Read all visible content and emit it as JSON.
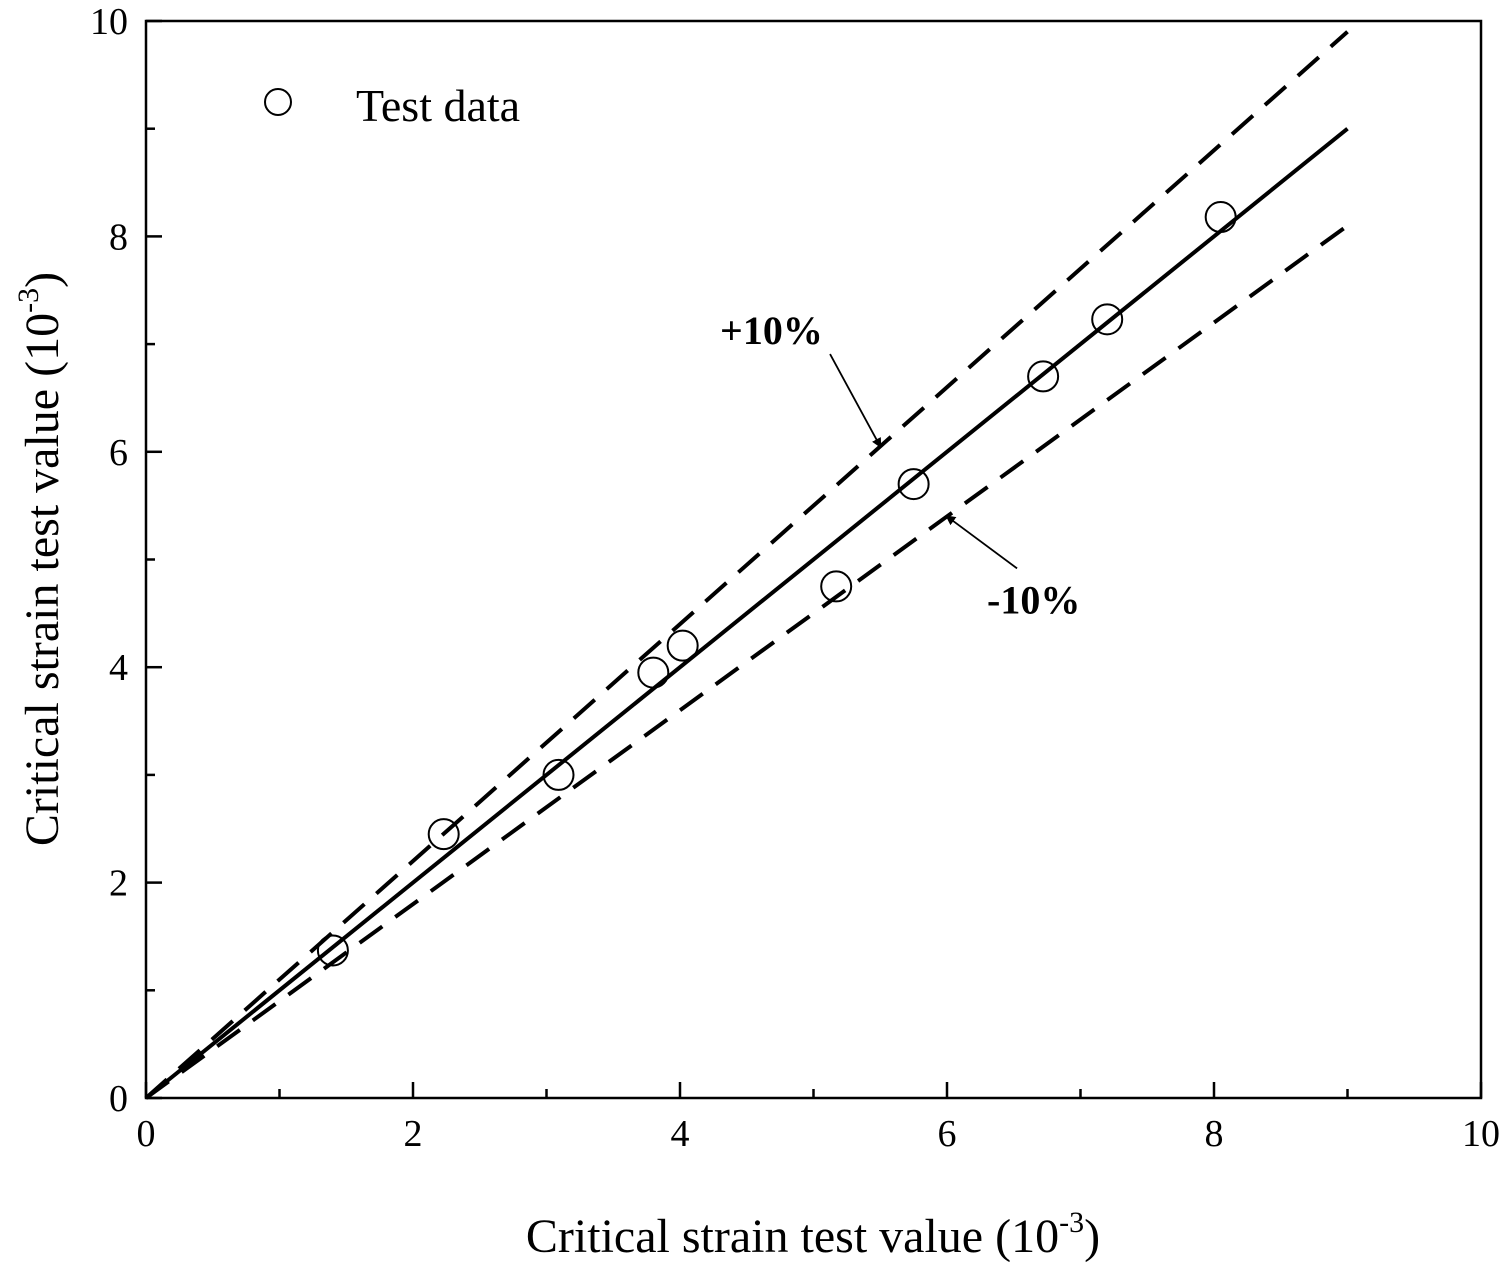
{
  "chart_data": {
    "type": "scatter",
    "title": "",
    "xlabel_main": "Critical strain test value (10",
    "xlabel_exp": "-3",
    "xlabel_close": ")",
    "ylabel_main": "Critical strain test value (10",
    "ylabel_exp": "-3",
    "ylabel_close": ")",
    "xlim": [
      0,
      10
    ],
    "ylim": [
      0,
      10
    ],
    "x_ticks": [
      0,
      2,
      4,
      6,
      8,
      10
    ],
    "y_ticks": [
      0,
      2,
      4,
      6,
      8,
      10
    ],
    "x_tick_labels": [
      "0",
      "2",
      "4",
      "6",
      "8",
      "10"
    ],
    "y_tick_labels": [
      "0",
      "2",
      "4",
      "6",
      "8",
      "10"
    ],
    "x_minor_ticks": [
      1,
      3,
      5,
      7,
      9
    ],
    "y_minor_ticks": [
      1,
      3,
      5,
      7,
      9
    ],
    "grid": false,
    "legend": {
      "position": "top-left",
      "entries": [
        "Test data"
      ]
    },
    "series": [
      {
        "name": "Test data",
        "marker": "open-circle",
        "x": [
          1.4,
          2.23,
          3.09,
          3.8,
          4.02,
          5.17,
          5.75,
          6.72,
          7.2,
          8.05
        ],
        "y": [
          1.37,
          2.45,
          3.0,
          3.95,
          4.2,
          4.75,
          5.7,
          6.7,
          7.23,
          8.18
        ]
      }
    ],
    "reference_lines": [
      {
        "name": "y = x",
        "style": "solid",
        "slope": 1.0,
        "x_range": [
          0,
          9
        ]
      },
      {
        "name": "+10%",
        "style": "dashed",
        "slope": 1.1,
        "x_range": [
          0,
          9
        ]
      },
      {
        "name": "-10%",
        "style": "dashed",
        "slope": 0.9,
        "x_range": [
          0,
          9
        ]
      }
    ],
    "annotations": [
      {
        "text": "+10%",
        "target_line": "+10%",
        "text_at": [
          4.3,
          7.0
        ],
        "arrow_to": [
          5.5,
          6.05
        ]
      },
      {
        "text": "-10%",
        "target_line": "-10%",
        "text_at": [
          6.3,
          4.5
        ],
        "arrow_to": [
          6.0,
          5.4
        ]
      }
    ]
  }
}
